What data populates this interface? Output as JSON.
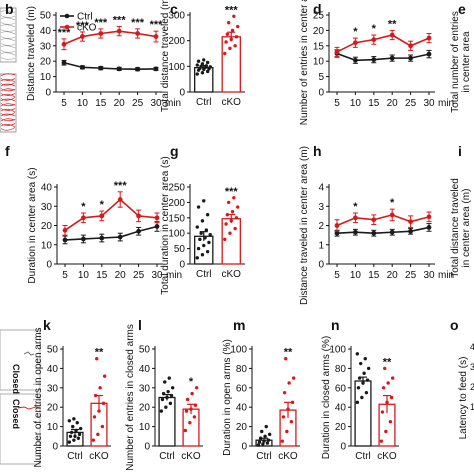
{
  "colors": {
    "ctrl": "#1a1a1a",
    "cko": "#d7191c",
    "trace_gray": "#9a9a9a"
  },
  "edge_labels": {
    "closed_1": "Closed",
    "closed_2": "Closed",
    "latency_partial": "Latency to feed (s)",
    "edge_ticks": [
      "4",
      "3",
      "2",
      "1"
    ]
  },
  "chart_data": [
    {
      "panel": "b",
      "type": "line",
      "ylabel": "Distance traveled (m)",
      "xlabel": "min",
      "x": [
        5,
        10,
        15,
        20,
        25,
        30
      ],
      "ylim": [
        0,
        50
      ],
      "yticks": [
        0,
        10,
        20,
        30,
        40,
        50
      ],
      "legend": [
        "Ctrl",
        "cKO"
      ],
      "legend_position": "top-left",
      "series": [
        {
          "name": "Ctrl",
          "values": [
            19,
            16,
            15.5,
            15,
            14.8,
            15
          ],
          "err": [
            1.5,
            1,
            1,
            1,
            1,
            1
          ]
        },
        {
          "name": "cKO",
          "values": [
            31,
            36,
            38,
            39.5,
            38,
            36
          ],
          "err": [
            3.5,
            3,
            3,
            3,
            3,
            3.5
          ]
        }
      ],
      "annotations": [
        {
          "x": 5,
          "text": "***"
        },
        {
          "x": 10,
          "text": "***"
        },
        {
          "x": 15,
          "text": "***"
        },
        {
          "x": 20,
          "text": "***"
        },
        {
          "x": 25,
          "text": "***"
        },
        {
          "x": 30,
          "text": "***"
        }
      ]
    },
    {
      "panel": "c",
      "type": "bar",
      "ylabel": "Total distance traveled (m)",
      "categories": [
        "Ctrl",
        "cKO"
      ],
      "values": [
        95,
        215
      ],
      "err": [
        8,
        18
      ],
      "ylim": [
        0,
        300
      ],
      "yticks": [
        0,
        100,
        200,
        300
      ],
      "significance": "***",
      "points": [
        [
          70,
          75,
          80,
          85,
          88,
          90,
          92,
          95,
          98,
          100,
          102,
          105,
          110,
          115,
          120,
          125
        ],
        [
          150,
          170,
          180,
          195,
          205,
          215,
          225,
          240,
          255,
          270,
          295
        ]
      ]
    },
    {
      "panel": "d",
      "type": "line",
      "ylabel": "Number of entries in center area",
      "xlabel": "min",
      "x": [
        5,
        10,
        15,
        20,
        25,
        30
      ],
      "ylim": [
        0,
        25
      ],
      "yticks": [
        0,
        5,
        10,
        15,
        20,
        25
      ],
      "series": [
        {
          "name": "Ctrl",
          "values": [
            12.5,
            10.3,
            10.5,
            11,
            11,
            12.3
          ],
          "err": [
            1.2,
            1,
            1,
            1,
            1,
            1.2
          ]
        },
        {
          "name": "cKO",
          "values": [
            13,
            16,
            17,
            18.5,
            15,
            17.5
          ],
          "err": [
            1.5,
            1.5,
            1.5,
            1.5,
            1.5,
            1.5
          ]
        }
      ],
      "annotations": [
        {
          "x": 10,
          "text": "*"
        },
        {
          "x": 15,
          "text": "*"
        },
        {
          "x": 20,
          "text": "**"
        }
      ]
    },
    {
      "panel": "e",
      "type": "bar",
      "ylabel": "Total number of entries in center area",
      "categories": [],
      "values": []
    },
    {
      "panel": "f",
      "type": "line",
      "ylabel": "Duration in center area (s)",
      "xlabel": "min",
      "x": [
        5,
        10,
        15,
        20,
        25,
        30
      ],
      "ylim": [
        0,
        40
      ],
      "yticks": [
        0,
        10,
        20,
        30,
        40
      ],
      "series": [
        {
          "name": "Ctrl",
          "values": [
            12.5,
            13,
            13.5,
            14,
            17,
            19.5
          ],
          "err": [
            2,
            2,
            2,
            2,
            2,
            2.5
          ]
        },
        {
          "name": "cKO",
          "values": [
            17.5,
            24,
            25,
            33.5,
            25,
            24
          ],
          "err": [
            2.5,
            2.5,
            2.5,
            4,
            3,
            2.5
          ]
        }
      ],
      "annotations": [
        {
          "x": 10,
          "text": "*"
        },
        {
          "x": 15,
          "text": "*"
        },
        {
          "x": 20,
          "text": "***"
        }
      ]
    },
    {
      "panel": "g",
      "type": "bar",
      "ylabel": "Total duration in center area (s)",
      "categories": [
        "Ctrl",
        "cKO"
      ],
      "values": [
        90,
        147
      ],
      "err": [
        15,
        14
      ],
      "ylim": [
        0,
        250
      ],
      "yticks": [
        0,
        50,
        100,
        150,
        200,
        250
      ],
      "significance": "***",
      "points": [
        [
          20,
          30,
          40,
          50,
          60,
          70,
          80,
          85,
          95,
          100,
          110,
          120,
          140,
          160,
          185,
          205
        ],
        [
          80,
          100,
          115,
          130,
          140,
          150,
          160,
          170,
          185,
          200,
          215
        ]
      ]
    },
    {
      "panel": "h",
      "type": "line",
      "ylabel": "Distance traveled in center area (m)",
      "xlabel": "min",
      "x": [
        5,
        10,
        15,
        20,
        25,
        30
      ],
      "ylim": [
        0,
        4
      ],
      "yticks": [
        0,
        1,
        2,
        3,
        4
      ],
      "series": [
        {
          "name": "Ctrl",
          "values": [
            1.6,
            1.65,
            1.6,
            1.65,
            1.7,
            1.9
          ],
          "err": [
            0.15,
            0.15,
            0.15,
            0.15,
            0.15,
            0.2
          ]
        },
        {
          "name": "cKO",
          "values": [
            2,
            2.4,
            2.3,
            2.55,
            2.2,
            2.45
          ],
          "err": [
            0.3,
            0.25,
            0.25,
            0.3,
            0.3,
            0.25
          ]
        }
      ],
      "annotations": [
        {
          "x": 10,
          "text": "*"
        },
        {
          "x": 20,
          "text": "*"
        }
      ]
    },
    {
      "panel": "i",
      "type": "bar",
      "ylabel": "Total distance traveled in center area (m)",
      "categories": [],
      "values": []
    },
    {
      "panel": "k",
      "type": "bar",
      "ylabel": "Number of entries in open arms",
      "categories": [
        "Ctrl",
        "cKO"
      ],
      "values": [
        7,
        22
      ],
      "err": [
        1.5,
        4
      ],
      "ylim": [
        0,
        50
      ],
      "yticks": [
        0,
        10,
        20,
        30,
        40,
        50
      ],
      "significance": "**",
      "points": [
        [
          2,
          3,
          4,
          5,
          5,
          6,
          7,
          8,
          9,
          10,
          12,
          13,
          14
        ],
        [
          3,
          6,
          10,
          15,
          18,
          22,
          26,
          30,
          36,
          45
        ]
      ]
    },
    {
      "panel": "l",
      "type": "bar",
      "ylabel": "Number of entries in closed arms",
      "categories": [
        "Ctrl",
        "cKO"
      ],
      "values": [
        25,
        19
      ],
      "err": [
        1.5,
        2.5
      ],
      "ylim": [
        0,
        50
      ],
      "yticks": [
        0,
        10,
        20,
        30,
        40,
        50
      ],
      "significance": "*",
      "points": [
        [
          18,
          20,
          22,
          24,
          25,
          26,
          27,
          28,
          30,
          33,
          35
        ],
        [
          8,
          12,
          15,
          18,
          19,
          21,
          24,
          27,
          30
        ]
      ]
    },
    {
      "panel": "m",
      "type": "bar",
      "ylabel": "Duration in open arms (%)",
      "categories": [
        "Ctrl",
        "cKO"
      ],
      "values": [
        6,
        37
      ],
      "err": [
        2,
        8
      ],
      "ylim": [
        0,
        100
      ],
      "yticks": [
        0,
        20,
        40,
        60,
        80,
        100
      ],
      "significance": "**",
      "points": [
        [
          1,
          2,
          3,
          4,
          5,
          6,
          8,
          10,
          12,
          15,
          20
        ],
        [
          5,
          15,
          25,
          30,
          38,
          45,
          55,
          65,
          70,
          90
        ]
      ]
    },
    {
      "panel": "n",
      "type": "bar",
      "ylabel": "Duration in closed arms (%)",
      "categories": [
        "Ctrl",
        "cKO"
      ],
      "values": [
        67,
        43
      ],
      "err": [
        4,
        9
      ],
      "ylim": [
        0,
        100
      ],
      "yticks": [
        0,
        20,
        40,
        60,
        80,
        100
      ],
      "significance": "**",
      "points": [
        [
          45,
          50,
          55,
          60,
          65,
          68,
          70,
          75,
          80,
          85,
          90,
          95
        ],
        [
          5,
          15,
          25,
          35,
          45,
          50,
          60,
          65,
          70,
          80
        ]
      ]
    },
    {
      "panel": "o",
      "type": "bar",
      "ylabel": "Latency to feed (s)",
      "categories": [],
      "values": []
    }
  ]
}
